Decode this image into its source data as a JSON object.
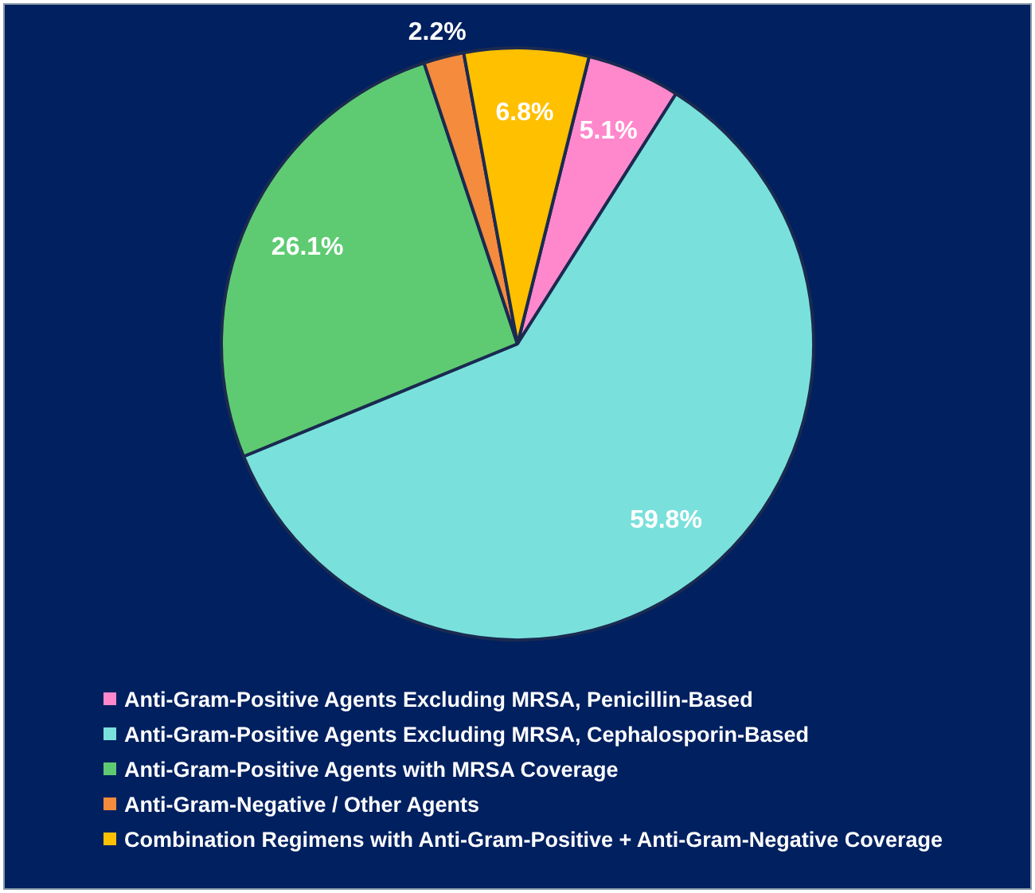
{
  "chart_data": {
    "type": "pie",
    "categories": [
      "Anti-Gram-Positive Agents Excluding MRSA, Penicillin-Based",
      "Anti-Gram-Positive Agents Excluding MRSA, Cephalosporin-Based",
      "Anti-Gram-Positive Agents with MRSA Coverage",
      "Anti-Gram-Negative / Other Agents",
      "Combination Regimens with Anti-Gram-Positive + Anti-Gram-Negative Coverage"
    ],
    "values": [
      5.1,
      59.8,
      26.1,
      2.2,
      6.8
    ],
    "colors": [
      "#ff88cc",
      "#7ae0dc",
      "#5ecb72",
      "#f58b3c",
      "#ffc000"
    ],
    "value_labels": [
      "5.1%",
      "59.8%",
      "26.1%",
      "2.2%",
      "6.8%"
    ],
    "legend": "bottom left"
  }
}
